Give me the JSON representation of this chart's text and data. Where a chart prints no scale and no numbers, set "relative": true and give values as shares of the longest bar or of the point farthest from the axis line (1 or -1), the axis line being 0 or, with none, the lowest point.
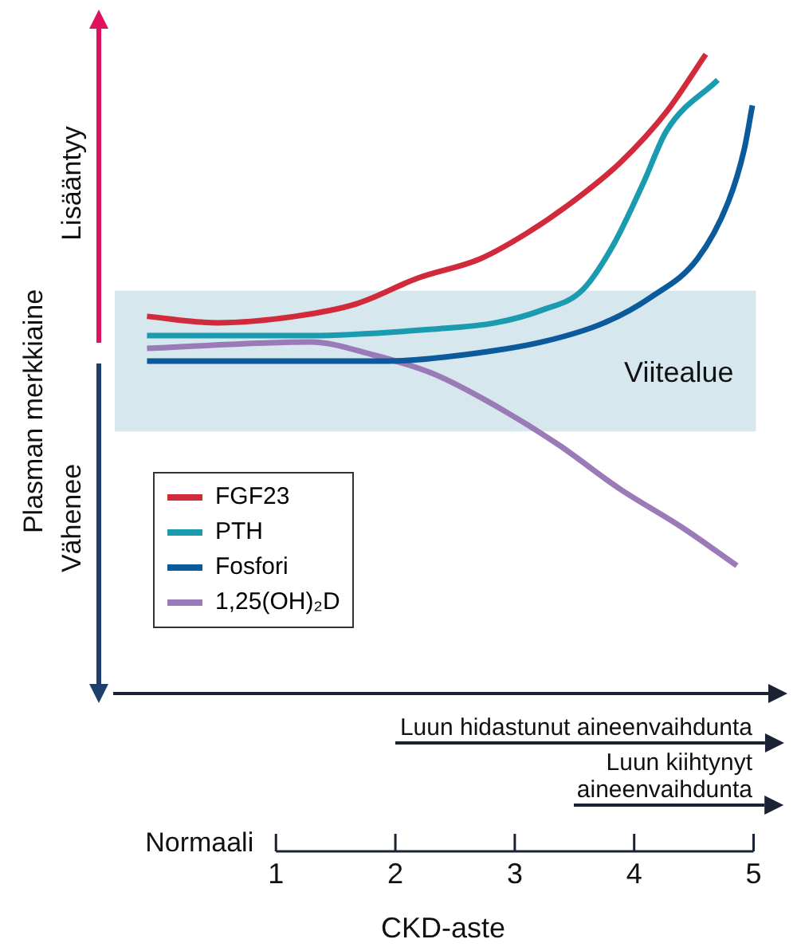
{
  "chart_data": {
    "type": "line",
    "relative": true,
    "ylabel": "Plasman merkkiaine",
    "xlabel": "CKD-aste",
    "xlim": [
      -0.35,
      5.15
    ],
    "xticks": [
      1,
      2,
      3,
      4,
      5
    ],
    "legend": "bottom left",
    "grid": false,
    "marker": "none",
    "line_style": "solid",
    "series": [
      {
        "name": "FGF23",
        "color": "#d12a3a",
        "x": [
          -0.08,
          0.51,
          1.16,
          1.68,
          2.19,
          2.71,
          3.1,
          3.49,
          3.88,
          4.27,
          4.6
        ],
        "values": [
          0.59,
          0.58,
          0.59,
          0.61,
          0.65,
          0.68,
          0.72,
          0.77,
          0.83,
          0.91,
          1
        ]
      },
      {
        "name": "PTH",
        "color": "#1a9bb0",
        "x": [
          -0.08,
          1.29,
          2.32,
          2.84,
          3.23,
          3.56,
          3.82,
          4.08,
          4.27,
          4.7
        ],
        "values": [
          0.56,
          0.56,
          0.57,
          0.58,
          0.6,
          0.63,
          0.7,
          0.8,
          0.88,
          0.96
        ]
      },
      {
        "name": "Fosfori",
        "color": "#0b5a9c",
        "x": [
          -0.08,
          1.94,
          2.58,
          3.23,
          3.75,
          4.14,
          4.53,
          4.79,
          4.92,
          4.99
        ],
        "values": [
          0.52,
          0.52,
          0.53,
          0.55,
          0.58,
          0.62,
          0.68,
          0.77,
          0.85,
          0.92
        ]
      },
      {
        "name": "1,25(OH)₂D",
        "color": "#9b7ab8",
        "x": [
          -0.08,
          1.29,
          1.81,
          2.32,
          2.84,
          3.36,
          3.88,
          4.4,
          4.86
        ],
        "values": [
          0.54,
          0.55,
          0.53,
          0.5,
          0.45,
          0.39,
          0.32,
          0.26,
          0.2
        ]
      }
    ],
    "bands": [
      {
        "axis": "y",
        "from": 0.41,
        "to": 0.63,
        "label": "Viitealue",
        "color": "#d6e7ee"
      }
    ],
    "annotations": [
      "Lisääntyy",
      "Vähenee",
      "Luun hidastunut aineenvaihdunta",
      "Luun kiihtynyt aineenvaihdunta",
      "Normaali"
    ]
  }
}
